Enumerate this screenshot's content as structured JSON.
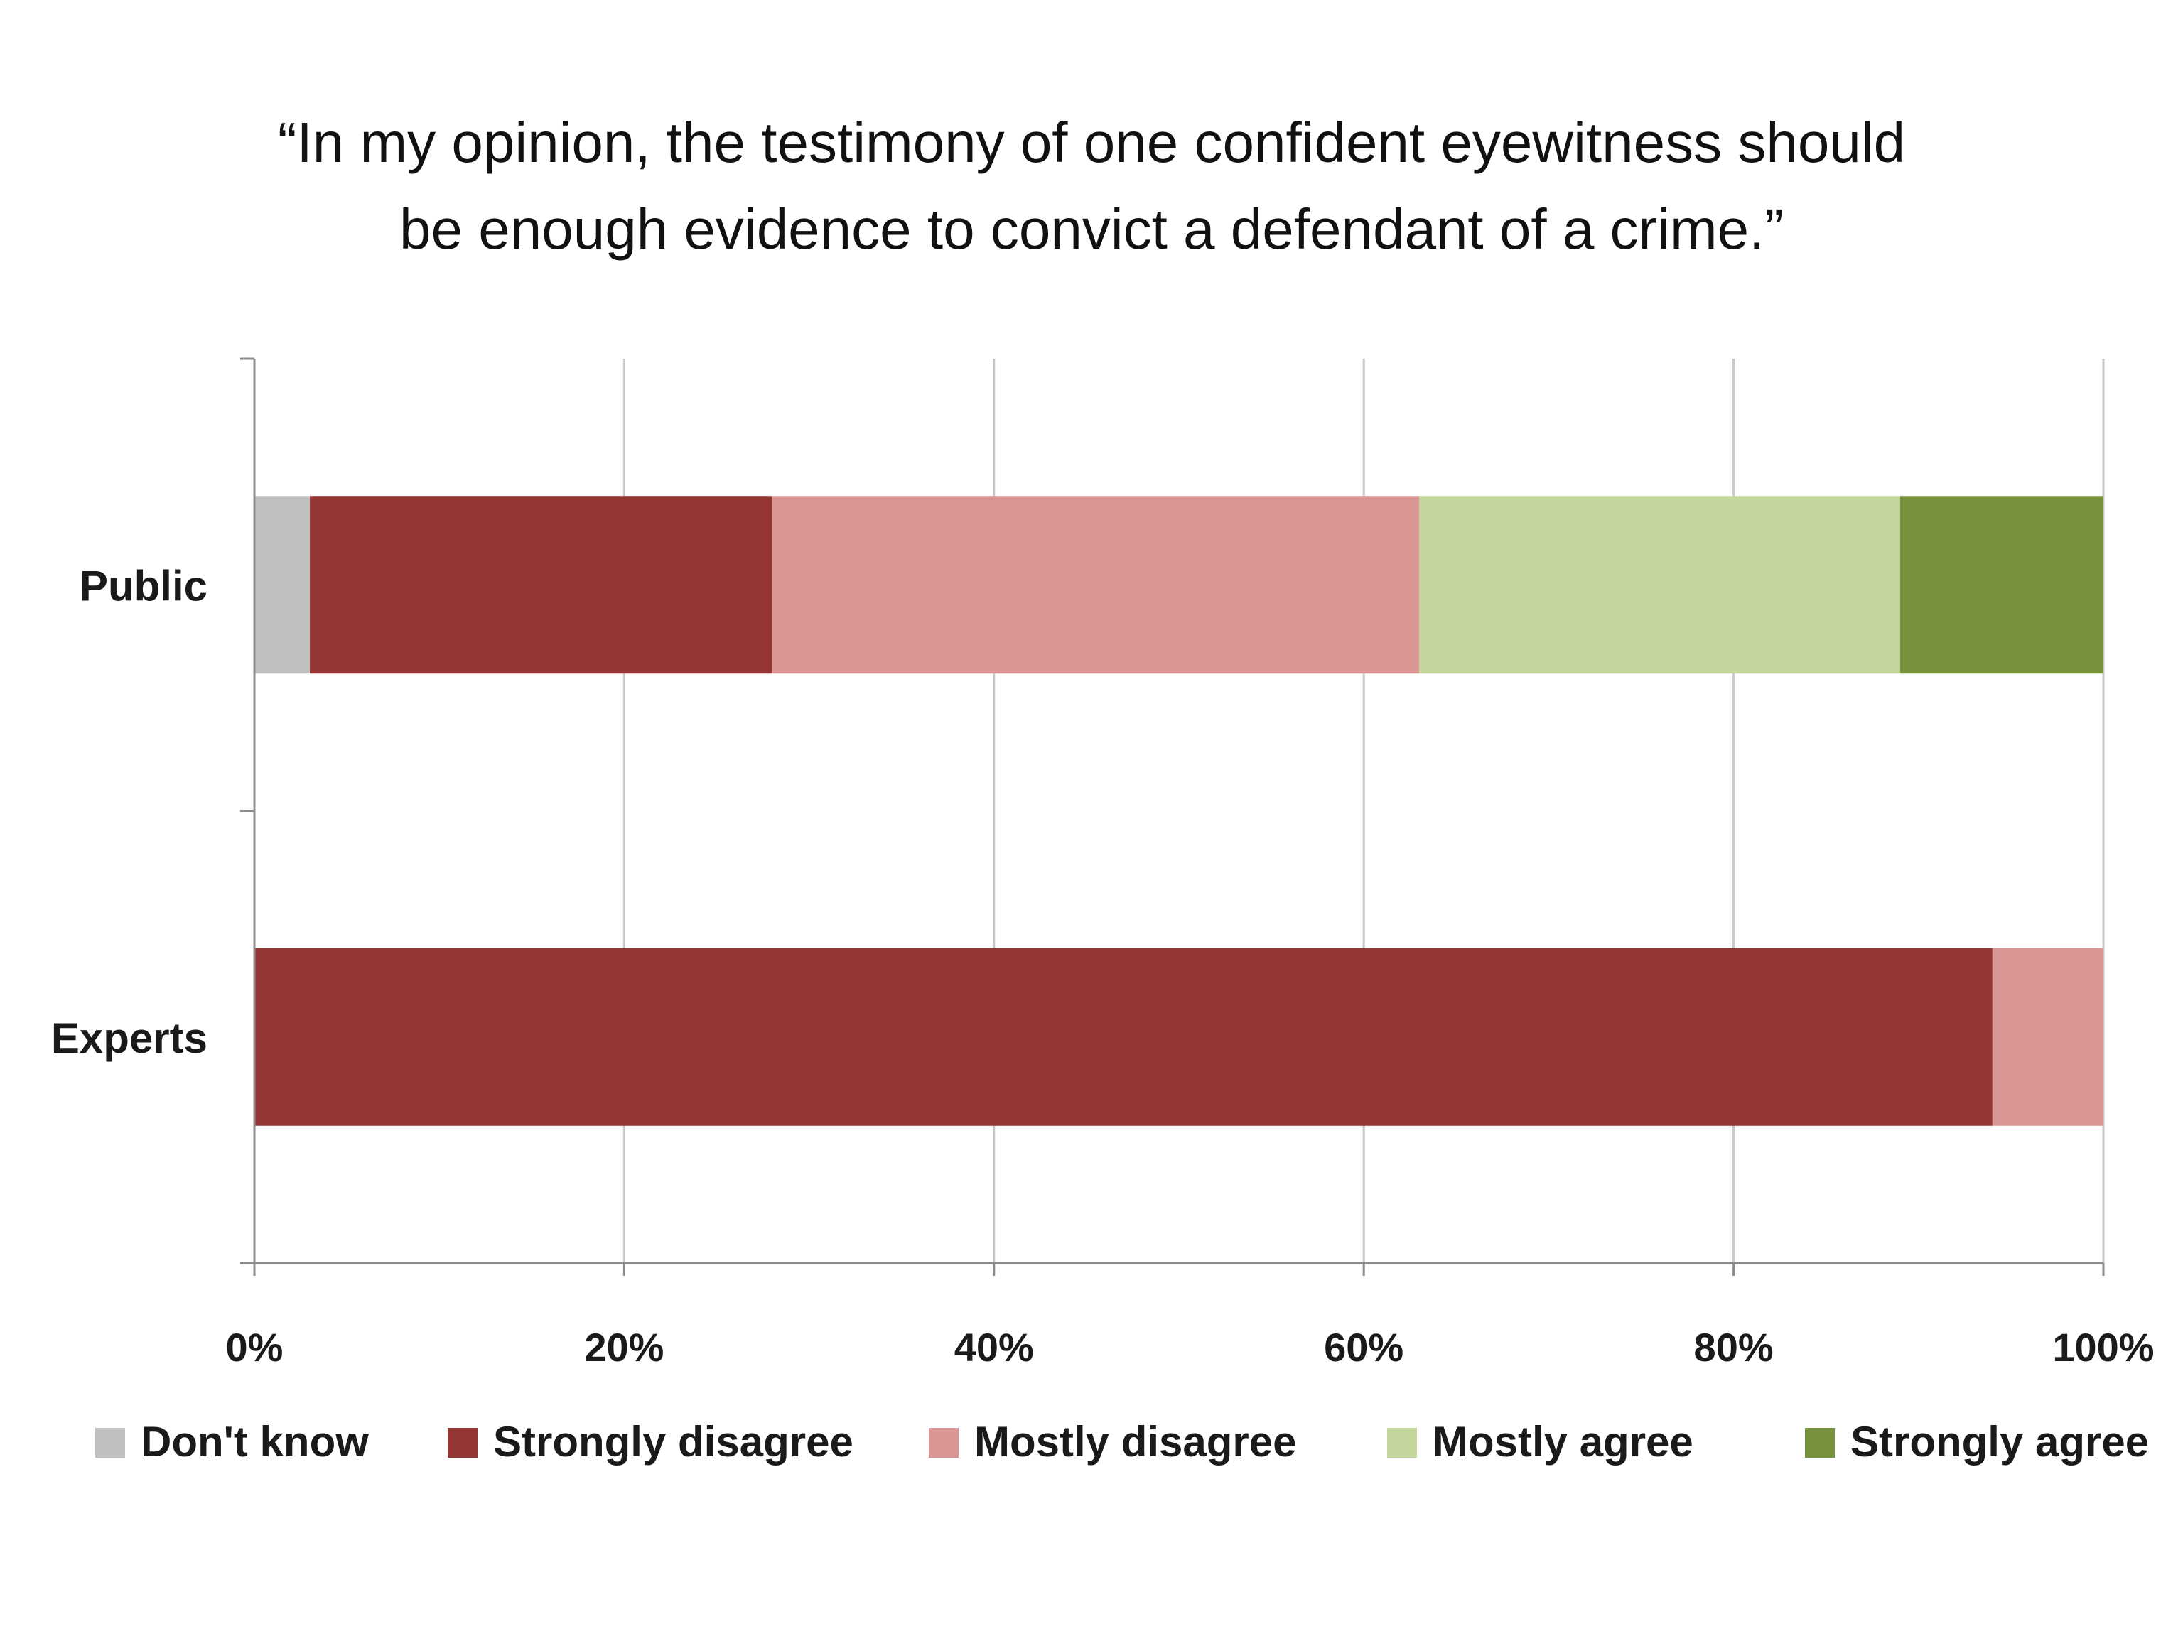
{
  "chart_data": {
    "type": "bar",
    "orientation": "horizontal",
    "stacked": true,
    "title": "“In my opinion, the testimony of one confident eyewitness should be enough evidence to convict a defendant of a crime.”",
    "title_lines": [
      "“In my opinion, the testimony of one confident eyewitness should",
      "be enough evidence to convict a defendant of a crime.”"
    ],
    "categories": [
      "Public",
      "Experts"
    ],
    "series": [
      {
        "name": "Don't know",
        "color": "#c0c0c0",
        "values": [
          3,
          0
        ]
      },
      {
        "name": "Strongly disagree",
        "color": "#943634",
        "values": [
          25,
          94
        ]
      },
      {
        "name": "Mostly disagree",
        "color": "#da9694",
        "values": [
          35,
          6
        ]
      },
      {
        "name": "Mostly agree",
        "color": "#c3d69b",
        "values": [
          26,
          0
        ]
      },
      {
        "name": "Strongly agree",
        "color": "#76923c",
        "values": [
          11,
          0
        ]
      }
    ],
    "xlim": [
      0,
      100
    ],
    "x_ticks": [
      "0%",
      "20%",
      "40%",
      "60%",
      "80%",
      "100%"
    ],
    "grid": true,
    "legend_position": "bottom"
  }
}
